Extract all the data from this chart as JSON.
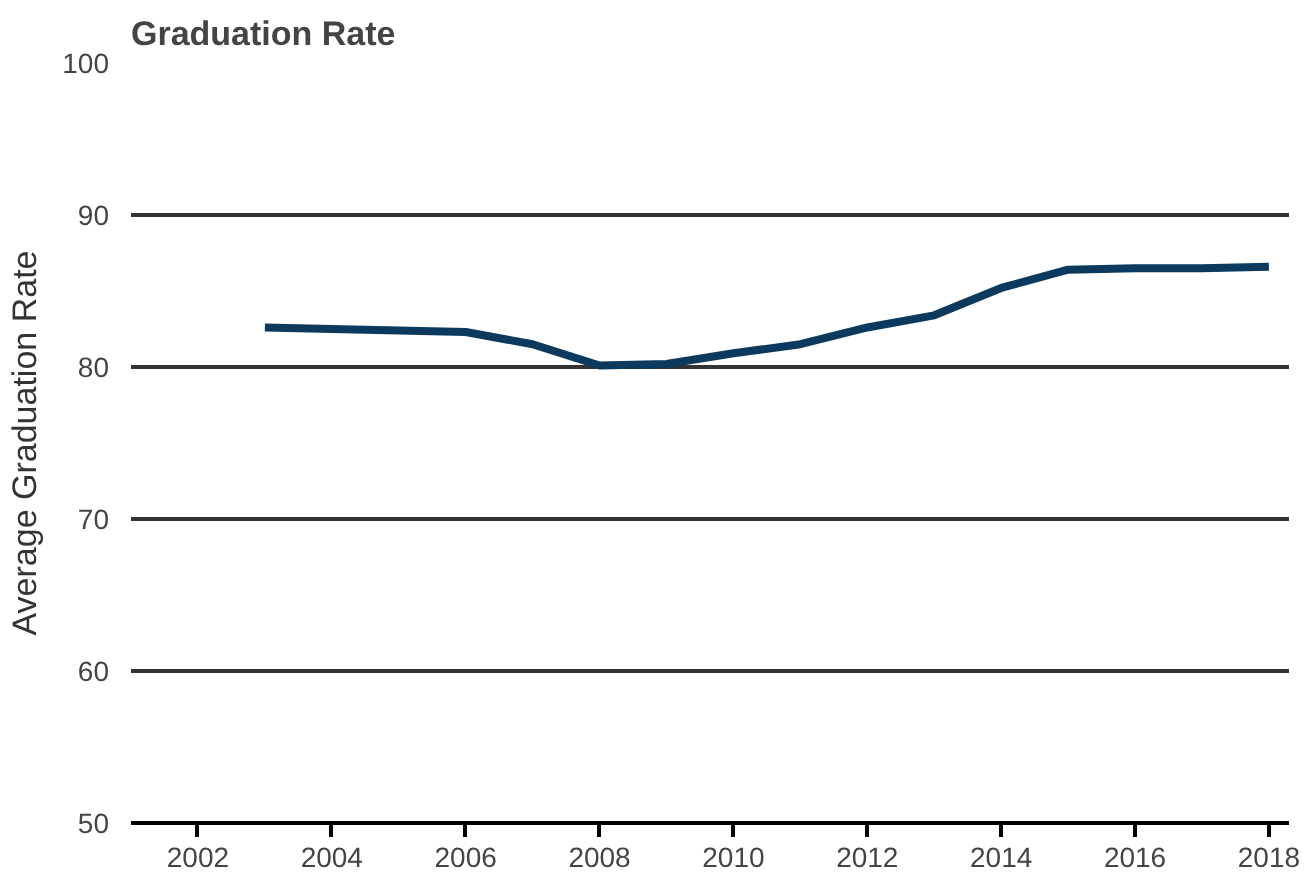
{
  "chart_data": {
    "type": "line",
    "title": "Graduation Rate",
    "ylabel": "Average Graduation Rate",
    "x": [
      2003,
      2004,
      2005,
      2006,
      2007,
      2008,
      2009,
      2010,
      2011,
      2012,
      2013,
      2014,
      2015,
      2016,
      2017,
      2018
    ],
    "series": [
      {
        "color": "#0b3a5e",
        "values": [
          82.6,
          82.5,
          82.4,
          82.3,
          81.5,
          80.1,
          80.2,
          80.9,
          81.5,
          82.6,
          83.4,
          85.2,
          86.4,
          86.5,
          86.5,
          86.6
        ]
      }
    ],
    "xlim": [
      2001,
      2018.3
    ],
    "xticks": [
      2002,
      2004,
      2006,
      2008,
      2010,
      2012,
      2014,
      2016,
      2018
    ],
    "ylim": [
      50,
      100
    ],
    "yticks": [
      50,
      60,
      70,
      80,
      90,
      100
    ],
    "grid": "y",
    "marker": "none",
    "line_style": "solid"
  }
}
